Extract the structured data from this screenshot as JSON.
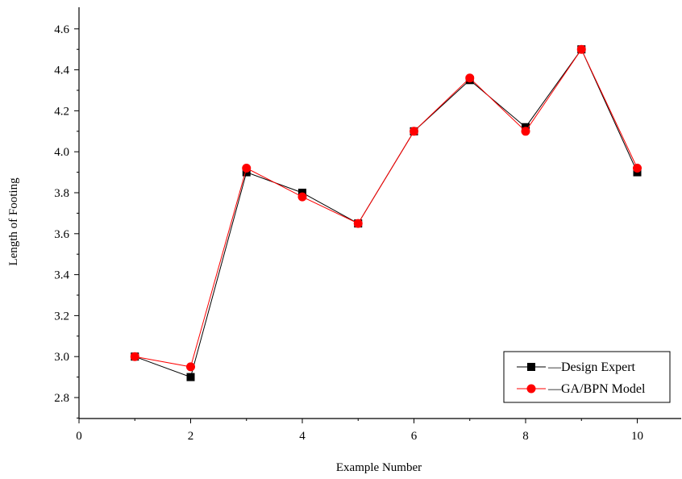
{
  "chart_data": {
    "type": "line",
    "xlabel": "Example Number",
    "ylabel": "Length of Footing",
    "xlim": [
      0,
      11
    ],
    "ylim": [
      2.7,
      4.75
    ],
    "xticks": [
      0,
      2,
      4,
      6,
      8,
      10
    ],
    "yticks": [
      2.8,
      3.0,
      3.2,
      3.4,
      3.6,
      3.8,
      4.0,
      4.2,
      4.4,
      4.6
    ],
    "x": [
      1,
      2,
      3,
      4,
      5,
      6,
      7,
      8,
      9,
      10
    ],
    "series": [
      {
        "name": "Design Expert",
        "color": "#000000",
        "marker": "square",
        "values": [
          3.0,
          2.9,
          3.9,
          3.8,
          3.65,
          4.1,
          4.35,
          4.12,
          4.5,
          3.9
        ]
      },
      {
        "name": "GA/BPN Model",
        "color": "#ff0000",
        "marker": "circle",
        "values": [
          3.0,
          2.95,
          3.92,
          3.78,
          3.65,
          4.1,
          4.36,
          4.1,
          4.5,
          3.92
        ]
      }
    ],
    "grid": false,
    "legend_position": "bottom-right"
  }
}
